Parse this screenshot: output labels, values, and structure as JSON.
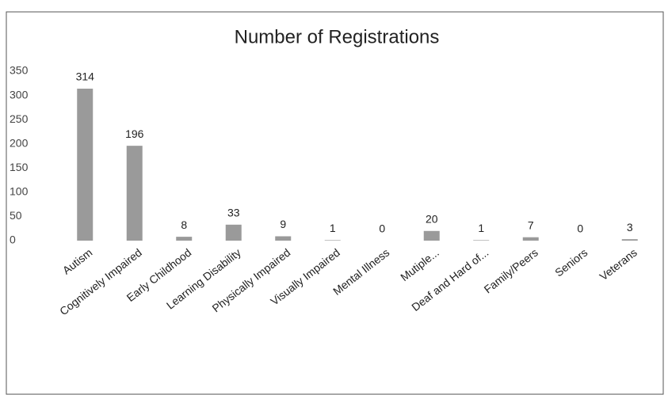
{
  "chart_data": {
    "type": "bar",
    "title": "Number of Registrations",
    "categories": [
      "Autism",
      "Cognitively Impaired",
      "Early Childhood",
      "Learning Disability",
      "Physically Impaired",
      "Visually Impaired",
      "Mental Illness",
      "Mutiple...",
      "Deaf and Hard of...",
      "Family/Peers",
      "Seniors",
      "Veterans"
    ],
    "values": [
      314,
      196,
      8,
      33,
      9,
      1,
      0,
      20,
      1,
      7,
      0,
      3
    ],
    "color": "#9a9a9a",
    "ylim": [
      0,
      350
    ],
    "yticks": [
      0,
      50,
      100,
      150,
      200,
      250,
      300,
      350
    ],
    "grid": false
  }
}
